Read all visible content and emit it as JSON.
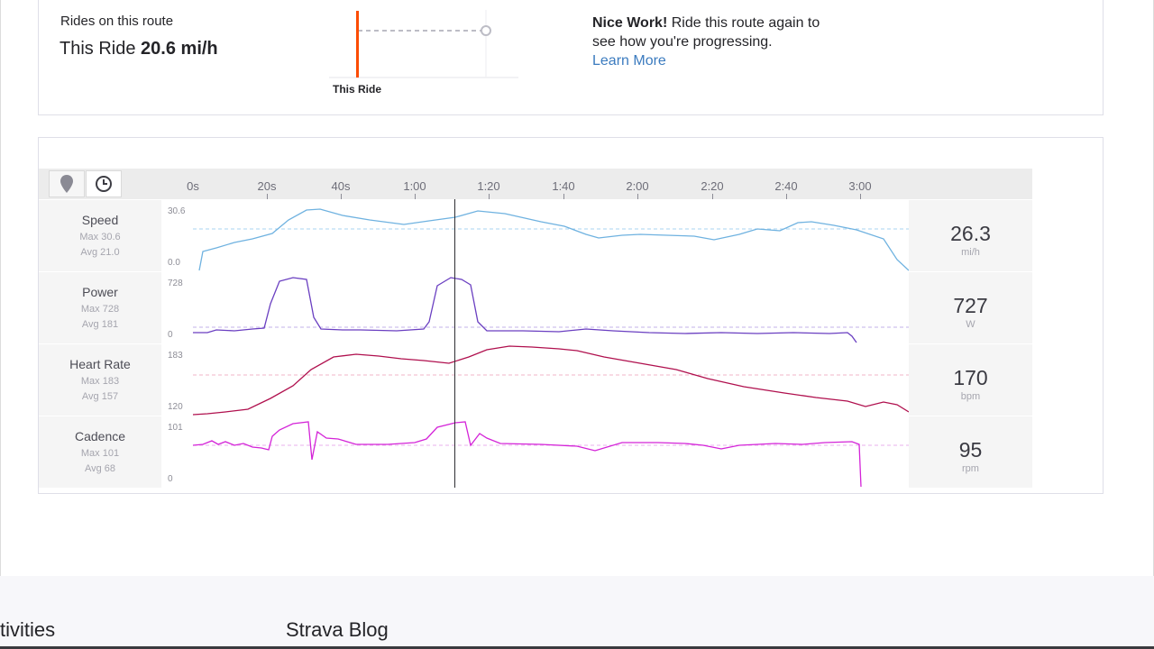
{
  "route_summary": {
    "rides_label": "Rides on this route",
    "this_ride_prefix": "This Ride",
    "this_ride_speed": "20.6 mi/h",
    "chart_label": "This Ride",
    "nice_bold": "Nice Work!",
    "nice_text": " Ride this route again to see how you're progressing.",
    "learn_more": "Learn More"
  },
  "analysis": {
    "tools": [
      {
        "name": "map-pin-icon"
      },
      {
        "name": "clock-icon"
      }
    ],
    "time_ticks": [
      "0s",
      "20s",
      "40s",
      "1:00",
      "1:20",
      "1:40",
      "2:00",
      "2:20",
      "2:40",
      "3:00"
    ],
    "rows": [
      {
        "label": "Speed",
        "max": "Max 30.6",
        "avg": "Avg 21.0",
        "axis_max": "30.6",
        "axis_min": "0.0",
        "value": "26.3",
        "unit": "mi/h",
        "color": "#6fb2e0"
      },
      {
        "label": "Power",
        "max": "Max 728",
        "avg": "Avg 181",
        "axis_max": "728",
        "axis_min": "0",
        "value": "727",
        "unit": "W",
        "color": "#6a3fc1"
      },
      {
        "label": "Heart Rate",
        "max": "Max 183",
        "avg": "Avg 157",
        "axis_max": "183",
        "axis_min": "120",
        "value": "170",
        "unit": "bpm",
        "color": "#b0104e"
      },
      {
        "label": "Cadence",
        "max": "Max 101",
        "avg": "Avg 68",
        "axis_max": "101",
        "axis_min": "0",
        "value": "95",
        "unit": "rpm",
        "color": "#d424d8"
      }
    ]
  },
  "footer": {
    "activities_link": "tivities",
    "blog_link": "Strava Blog"
  },
  "colors": {
    "accent_orange": "#fc4c02",
    "link_blue": "#3b7bbf"
  }
}
